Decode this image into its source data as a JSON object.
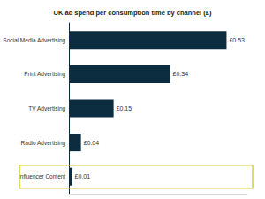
{
  "chart_data": {
    "type": "bar",
    "title": "UK ad spend per consumption time by channel (£)",
    "orientation": "horizontal",
    "categories": [
      "Social Media Advertising",
      "Print Advertising",
      "TV Advertising",
      "Radio Advertising",
      "Influencer Content"
    ],
    "values": [
      0.53,
      0.34,
      0.15,
      0.04,
      0.01
    ],
    "value_labels": [
      "£0.53",
      "£0.34",
      "£0.15",
      "£0.04",
      "£0.01"
    ],
    "color": "#0b2d3f",
    "xlim": [
      0,
      0.6
    ],
    "grid": false,
    "data_labels": true,
    "tick_labels": "y"
  }
}
